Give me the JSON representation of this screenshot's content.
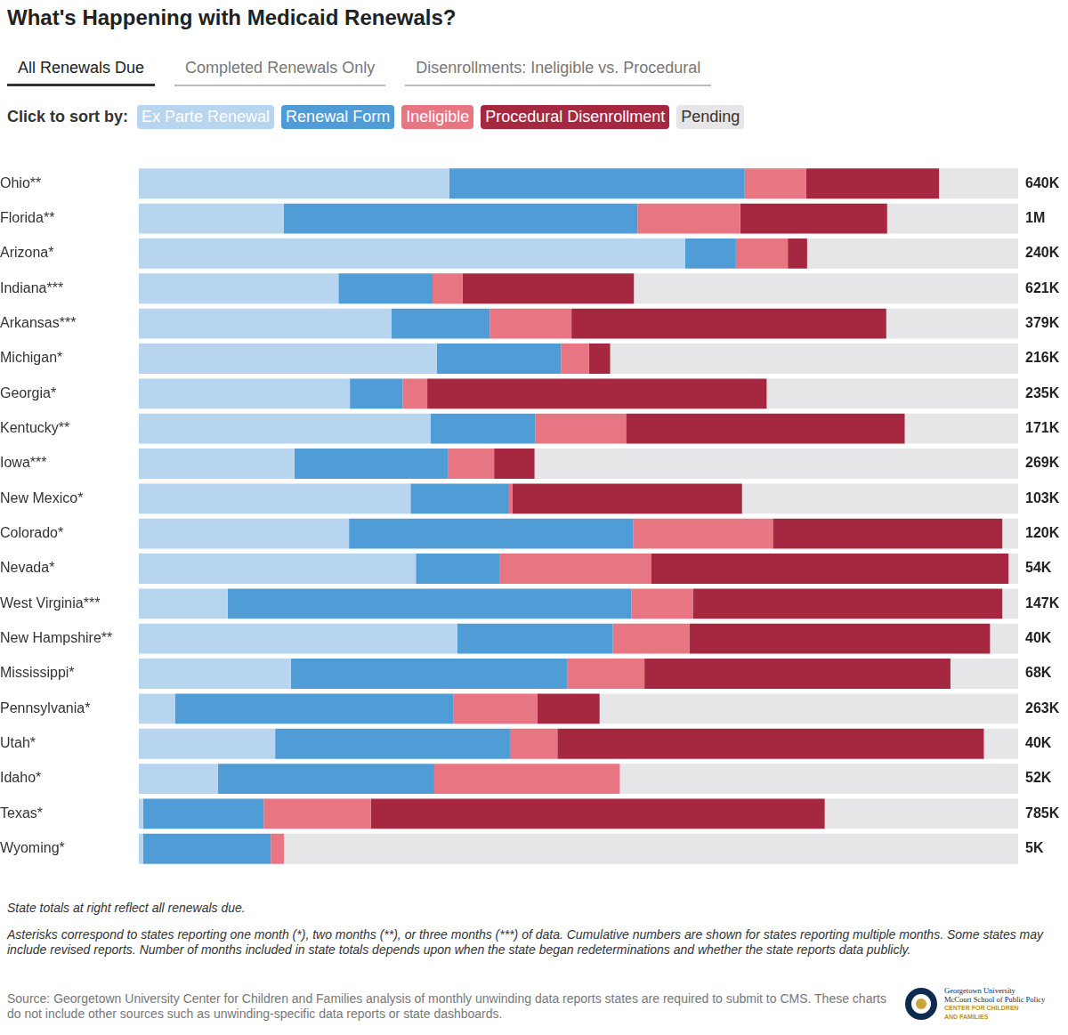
{
  "chart_data": {
    "type": "bar",
    "title": "What's Happening with Medicaid Renewals?",
    "tabs": [
      "All Renewals Due",
      "Completed Renewals Only",
      "Disenrollments: Ineligible vs. Procedural"
    ],
    "sort_label": "Click to sort by:",
    "orientation": "horizontal",
    "stacked": true,
    "grid": false,
    "legend": "top-left",
    "tick_labels": "y",
    "data_labels": false,
    "xlim": [
      0,
      100
    ],
    "categories": [
      "Ohio**",
      "Florida**",
      "Arizona*",
      "Indiana***",
      "Arkansas***",
      "Michigan*",
      "Georgia*",
      "Kentucky**",
      "Iowa***",
      "New Mexico*",
      "Colorado*",
      "Nevada*",
      "West Virginia***",
      "New Hampshire**",
      "Mississippi*",
      "Pennsylvania*",
      "Utah*",
      "Idaho*",
      "Texas*",
      "Wyoming*"
    ],
    "series": [
      {
        "name": "Ex Parte Renewal",
        "color": "#b8d5f0",
        "values": [
          35.3,
          16.5,
          62.1,
          22.7,
          28.7,
          33.9,
          24.0,
          33.2,
          17.7,
          30.9,
          23.9,
          31.5,
          10.1,
          36.2,
          17.3,
          4.1,
          15.5,
          9.0,
          0.5,
          0.5
        ]
      },
      {
        "name": "Renewal Form",
        "color": "#4f9cd6",
        "values": [
          33.6,
          40.2,
          5.8,
          10.7,
          11.2,
          14.1,
          6.0,
          11.9,
          17.5,
          11.2,
          32.3,
          9.5,
          45.9,
          17.7,
          31.4,
          31.7,
          26.7,
          24.6,
          13.7,
          14.5
        ]
      },
      {
        "name": "Ineligible",
        "color": "#e87582",
        "values": [
          7.0,
          11.7,
          5.9,
          3.4,
          9.3,
          3.2,
          2.8,
          10.3,
          5.2,
          0.4,
          15.9,
          17.3,
          7.0,
          8.7,
          8.8,
          9.5,
          5.4,
          21.1,
          12.2,
          1.5
        ]
      },
      {
        "name": "Procedural Disenrollment",
        "color": "#a52840",
        "values": [
          15.1,
          16.7,
          2.2,
          19.5,
          35.8,
          2.4,
          38.6,
          31.7,
          4.6,
          26.1,
          26.1,
          40.6,
          35.2,
          34.2,
          34.8,
          7.1,
          48.5,
          0,
          51.6,
          0
        ]
      },
      {
        "name": "Pending",
        "color": "#e6e6e8",
        "values": [
          9.0,
          14.9,
          24.0,
          43.7,
          15.0,
          46.4,
          28.6,
          12.9,
          55.0,
          31.4,
          1.8,
          1.1,
          1.8,
          3.2,
          7.7,
          47.6,
          3.9,
          45.3,
          22.0,
          83.5
        ]
      }
    ],
    "totals": [
      640000,
      1000000,
      240000,
      621000,
      379000,
      216000,
      235000,
      171000,
      269000,
      103000,
      120000,
      54000,
      147000,
      40000,
      68000,
      263000,
      40000,
      52000,
      785000,
      5000
    ],
    "total_labels": [
      "640K",
      "1M",
      "240K",
      "621K",
      "379K",
      "216K",
      "235K",
      "171K",
      "269K",
      "103K",
      "120K",
      "54K",
      "147K",
      "40K",
      "68K",
      "263K",
      "40K",
      "52K",
      "785K",
      "5K"
    ],
    "notes": [
      "State totals at right reflect all renewals due.",
      "Asterisks correspond to states reporting one month (*), two months (**), or three months (***) of data. Cumulative numbers are shown for states reporting multiple months. Some states may include revised reports. Number of months included in state totals depends upon when the state began redeterminations and whether the state reports data publicly."
    ],
    "source": "Source: Georgetown University Center for Children and Families analysis of monthly unwinding data reports states are required to submit to CMS. These charts do not include other sources such as unwinding-specific data reports or state dashboards.",
    "logo": [
      "Georgetown University",
      "McCourt School of Public Policy",
      "CENTER FOR CHILDREN",
      "AND FAMILIES"
    ]
  }
}
